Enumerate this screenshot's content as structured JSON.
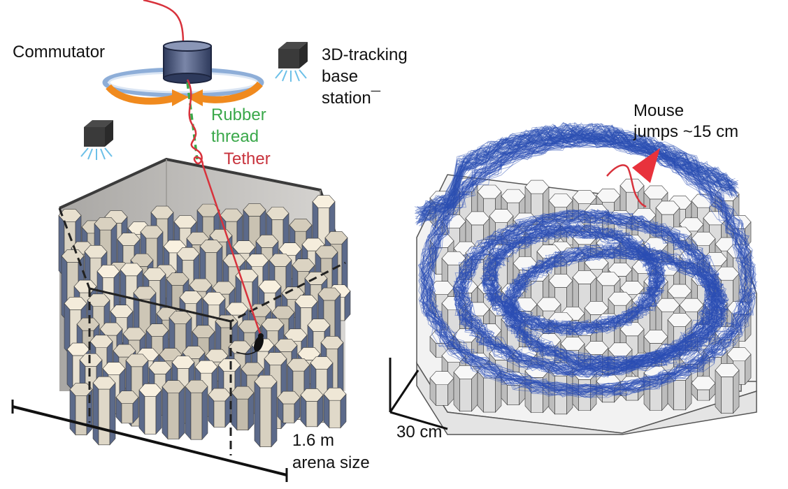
{
  "labels": {
    "commutator": "Commutator",
    "tracking_line1": "3D-tracking",
    "tracking_line2": "base",
    "tracking_line3": "station¯",
    "rubber_line1": "Rubber",
    "rubber_line2": "thread",
    "tether": "Tether",
    "mouse_line1": "Mouse",
    "mouse_line2": "jumps ~15 cm",
    "arena_line1": "1.6 m",
    "arena_line2": "arena size",
    "scale": "30 cm"
  },
  "colors": {
    "tether": "#d8323c",
    "rubber_thread": "#3aa84a",
    "arrows": "#f08a1e",
    "ring": "#9fb8dc",
    "commutator": "#4c5a80",
    "trajectory": "#2c4fb4",
    "pillar_top": "#efe6d6",
    "pillar_side": "#5c6a8a",
    "wall": "#c9c6c2",
    "ir_rays": "#6cc0e8"
  },
  "icons": [
    "commutator-icon",
    "tracking-camera-icon",
    "mouse-icon",
    "jump-pointer-icon"
  ]
}
